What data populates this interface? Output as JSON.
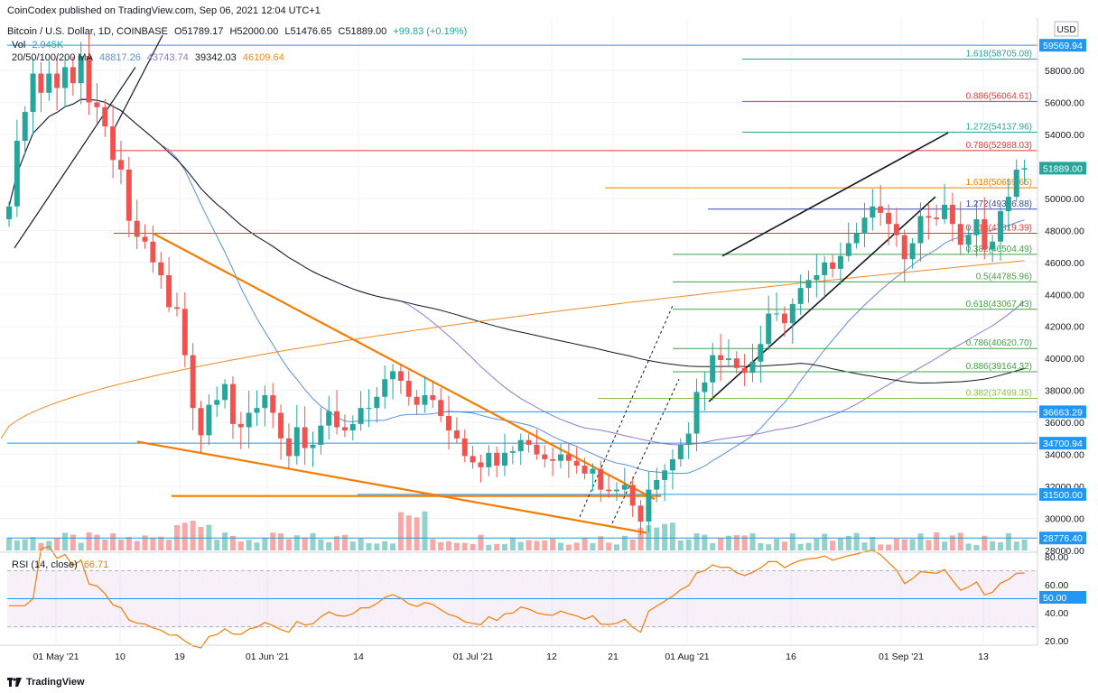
{
  "publisher": "CoinCodex published on TradingView.com, Sep 06, 2021 12:04 UTC+1",
  "symbol": "Bitcoin / U.S. Dollar, 1D, COINBASE",
  "ohlc": {
    "o": "O51789.17",
    "h": "H52000.00",
    "l": "L51476.65",
    "c": "C51889.00",
    "chg": "+99.83 (+0.19%)"
  },
  "vol": {
    "label": "Vol",
    "value": "2.945K"
  },
  "ma": {
    "label": "20/50/100/200 MA",
    "v20": "48817.26",
    "v50": "43743.74",
    "v100": "39342.03",
    "v200": "46109.64"
  },
  "rsi_label": {
    "name": "RSI (14, close)",
    "value": "66.71"
  },
  "currency": "USD",
  "footer": "TradingView",
  "colors": {
    "up": "#26a69a",
    "down": "#ef5350",
    "ma20": "#5b8fd6",
    "ma50": "#9575cd",
    "ma100": "#131722",
    "ma200": "#f08a24",
    "orange": "#f57c00",
    "rsi": "#f57c00"
  },
  "chart_data": {
    "type": "candlestick",
    "y_ticks": [
      "58000.00",
      "56000.00",
      "54000.00",
      "52000.00",
      "50000.00",
      "48000.00",
      "46000.00",
      "44000.00",
      "42000.00",
      "40000.00",
      "38000.00",
      "36000.00",
      "34000.00",
      "32000.00",
      "30000.00",
      "28000.00"
    ],
    "ylim": [
      26500,
      60500
    ],
    "x_ticks": [
      "01 May '21",
      "10",
      "19",
      "01 Jun '21",
      "14",
      "01 Jul '21",
      "12",
      "21",
      "01 Aug '21",
      "16",
      "01 Sep '21",
      "13"
    ],
    "rsi_ticks": [
      "80.00",
      "60.00",
      "40.00",
      "20.00"
    ],
    "rsi_levels": [
      70,
      50,
      30
    ],
    "price_tags": [
      {
        "label": "59569.94",
        "value": 59569.94,
        "color": "#2196f3"
      },
      {
        "label": "51889.00",
        "value": 51889,
        "color": "#26a69a"
      },
      {
        "label": "36663.29",
        "value": 36663.29,
        "color": "#2196f3"
      },
      {
        "label": "34700.94",
        "value": 34700.94,
        "color": "#2196f3"
      },
      {
        "label": "31500.00",
        "value": 31500,
        "color": "#2196f3"
      },
      {
        "label": "28776.40",
        "value": 28776.4,
        "color": "#2196f3"
      },
      {
        "label": "50.00",
        "value": 50,
        "color": "#2196f3",
        "pane": "rsi"
      }
    ],
    "fib_levels": [
      {
        "label": "1.618(58705.08)",
        "value": 58705.08,
        "color": "#26a69a"
      },
      {
        "label": "0.886(56064.61)",
        "value": 56064.61,
        "color": "#e53935"
      },
      {
        "label": "1.272(54137.96)",
        "value": 54137.96,
        "color": "#26a69a"
      },
      {
        "label": "0.786(52988.03)",
        "value": 52988.03,
        "color": "#e53935"
      },
      {
        "label": "1.618(50659.65)",
        "value": 50659.65,
        "color": "#f57c00"
      },
      {
        "label": "1.272(49326.88)",
        "value": 49326.88,
        "color": "#3949ab"
      },
      {
        "label": "0.618(47819.39)",
        "value": 47819.39,
        "color": "#e53935"
      },
      {
        "label": "0.382(46504.49)",
        "value": 46504.49,
        "color": "#43a047"
      },
      {
        "label": "0.5(44785.96)",
        "value": 44785.96,
        "color": "#43a047"
      },
      {
        "label": "0.618(43067.43)",
        "value": 43067.43,
        "color": "#43a047"
      },
      {
        "label": "0.786(40620.70)",
        "value": 40620.7,
        "color": "#43a047"
      },
      {
        "label": "0.886(39164.32)",
        "value": 39164.32,
        "color": "#43a047"
      },
      {
        "label": "0.382(37499.35)",
        "value": 37499.35,
        "color": "#8bc34a"
      }
    ],
    "closes": [
      49500,
      53600,
      55400,
      57800,
      56600,
      57800,
      56900,
      58200,
      57200,
      58900,
      56000,
      55700,
      54500,
      52400,
      51800,
      48600,
      47600,
      47300,
      46000,
      45200,
      43200,
      43100,
      40200,
      36900,
      35200,
      37100,
      37400,
      38400,
      35900,
      35700,
      36600,
      36900,
      37700,
      36600,
      35000,
      33900,
      35700,
      34400,
      34600,
      35800,
      36700,
      35700,
      35500,
      35900,
      36900,
      36900,
      37600,
      38700,
      39200,
      38600,
      37600,
      37100,
      37700,
      37400,
      36400,
      35500,
      35000,
      33900,
      33500,
      33200,
      34100,
      33300,
      34100,
      34200,
      34900,
      34600,
      34000,
      33700,
      33600,
      34000,
      33600,
      33300,
      32800,
      33100,
      31800,
      31700,
      31800,
      32100,
      30800,
      29800,
      31800,
      32400,
      33000,
      33700,
      34600,
      35300,
      37900,
      38500,
      40200,
      39900,
      40000,
      39400,
      39100,
      39800,
      40900,
      42800,
      42800,
      42200,
      43400,
      44400,
      44900,
      45200,
      46000,
      45600,
      46400,
      47200,
      47800,
      48800,
      49500,
      49100,
      48400,
      47700,
      46200,
      47200,
      48900,
      48800,
      48700,
      49600,
      48400,
      47100,
      47700,
      48700,
      46800,
      47300,
      49200,
      50100,
      51800,
      51889
    ],
    "last_close": 51889
  }
}
